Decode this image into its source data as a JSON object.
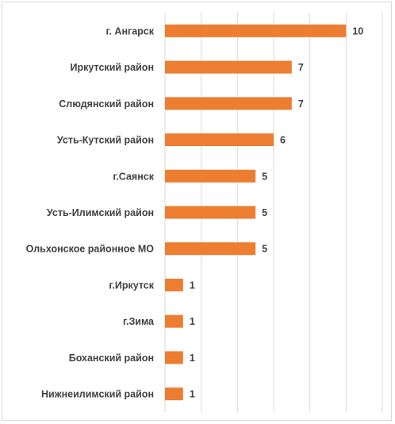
{
  "chart_data": {
    "type": "bar",
    "orientation": "horizontal",
    "categories": [
      "г. Ангарск",
      "Иркутский район",
      "Слюдянский район",
      "Усть-Кутский район",
      "г.Саянск",
      "Усть-Илимский район",
      "Ольхонское районное МО",
      "г.Иркутск",
      "г.Зима",
      "Боханский район",
      "Нижнеилимский район"
    ],
    "values": [
      10,
      7,
      7,
      6,
      5,
      5,
      5,
      1,
      1,
      1,
      1
    ],
    "xlim": [
      0,
      12
    ],
    "grid": true,
    "color": "#ed7d31",
    "gridColor": "#d9d9d9",
    "title": "",
    "xlabel": "",
    "ylabel": ""
  }
}
